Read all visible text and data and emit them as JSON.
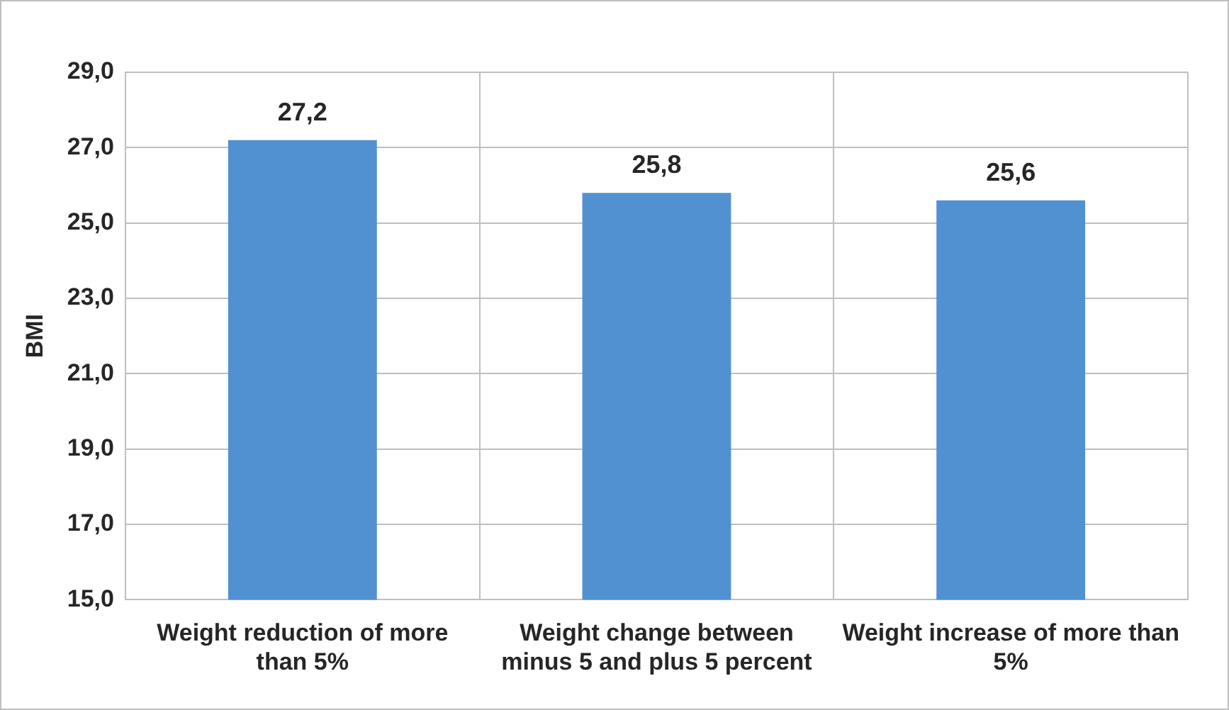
{
  "chart_data": {
    "type": "bar",
    "ylabel": "BMI",
    "categories": [
      "Weight reduction of more than 5%",
      "Weight change between minus 5 and plus 5 percent",
      "Weight increase of more than 5%"
    ],
    "values": [
      27.2,
      25.8,
      25.6
    ],
    "value_labels": [
      "27,2",
      "25,8",
      "25,6"
    ],
    "color": "#5191d1",
    "ylim": [
      15,
      29
    ],
    "yticks": [
      {
        "value": 15,
        "label": "15,0"
      },
      {
        "value": 17,
        "label": "17,0"
      },
      {
        "value": 19,
        "label": "19,0"
      },
      {
        "value": 21,
        "label": "21,0"
      },
      {
        "value": 23,
        "label": "23,0"
      },
      {
        "value": 25,
        "label": "25,0"
      },
      {
        "value": 27,
        "label": "27,0"
      },
      {
        "value": 29,
        "label": "29,0"
      }
    ],
    "grid": true
  }
}
